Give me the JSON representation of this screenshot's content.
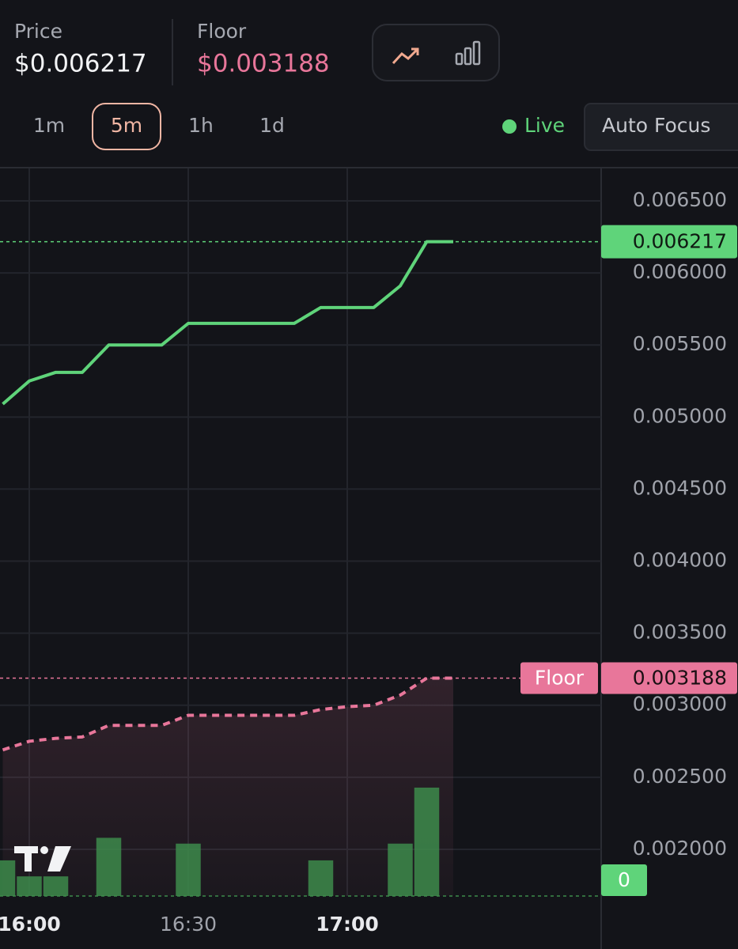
{
  "header": {
    "price_label": "Price",
    "price": "$0.006217",
    "floor_label": "Floor",
    "floor": "$0.003188"
  },
  "timeframes": {
    "options": [
      "1m",
      "5m",
      "1h",
      "1d"
    ],
    "selected": 1
  },
  "live": "Live",
  "auto_focus": "Auto Focus",
  "chart_data": {
    "type": "line",
    "x": [
      null,
      "16:00",
      null,
      null,
      null,
      null,
      null,
      "16:30",
      null,
      null,
      null,
      null,
      null,
      "17:00",
      null,
      null,
      null,
      null
    ],
    "series": [
      {
        "color": "#5fd47a",
        "values": [
          0.00509,
          0.00525,
          0.00531,
          0.00531,
          0.0055,
          0.0055,
          0.0055,
          0.00565,
          0.00565,
          0.00565,
          0.00565,
          0.00565,
          0.00576,
          0.00576,
          0.00576,
          0.00591,
          0.006217,
          0.006217
        ]
      },
      {
        "color": "#e8769a",
        "dashed": true,
        "values": [
          0.00269,
          0.00275,
          0.00277,
          0.00278,
          0.00286,
          0.00286,
          0.00286,
          0.00293,
          0.00293,
          0.00293,
          0.00293,
          0.00293,
          0.00297,
          0.00299,
          0.003,
          0.00307,
          0.003188,
          0.003188
        ]
      },
      {
        "type": "bar",
        "axis": "y2",
        "color": "#3d8b4b",
        "values": [
          49,
          27,
          27,
          0,
          80,
          0,
          0,
          72,
          0,
          0,
          0,
          0,
          49,
          0,
          0,
          72,
          149,
          0
        ]
      }
    ],
    "ylim": [
      0.001676,
      0.006725
    ],
    "yticks": [
      {
        "value": 0.002,
        "label": "0.002000"
      },
      {
        "value": 0.0025,
        "label": "0.002500"
      },
      {
        "value": 0.003,
        "label": "0.003000"
      },
      {
        "value": 0.0035,
        "label": "0.003500"
      },
      {
        "value": 0.004,
        "label": "0.004000"
      },
      {
        "value": 0.0045,
        "label": "0.004500"
      },
      {
        "value": 0.005,
        "label": "0.005000"
      },
      {
        "value": 0.0055,
        "label": "0.005500"
      },
      {
        "value": 0.006,
        "label": "0.006000"
      },
      {
        "value": 0.0065,
        "label": "0.006500"
      }
    ],
    "y2lim": [
      0,
      1000
    ],
    "y2ticks": [
      0
    ],
    "price_line": {
      "value": 0.006217,
      "label": "0.006217"
    },
    "floor_line": {
      "name": "Floor",
      "value": 0.003188,
      "label": "0.003188"
    },
    "grid": true
  }
}
